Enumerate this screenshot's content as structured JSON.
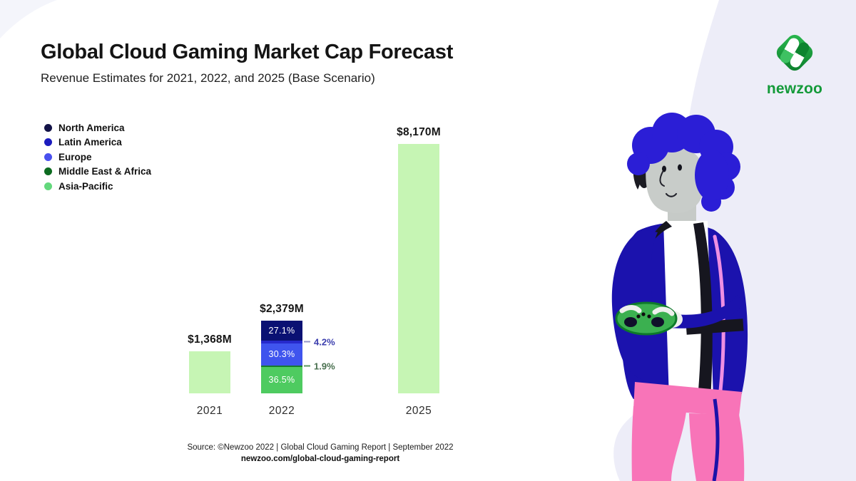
{
  "page": {
    "background": "#ffffff",
    "blob_color": "#ededf8"
  },
  "header": {
    "title": "Global Cloud Gaming Market Cap Forecast",
    "subtitle": "Revenue Estimates for 2021, 2022, and 2025 (Base Scenario)"
  },
  "logo": {
    "text": "newzoo",
    "text_color": "#149a39",
    "diamond_green_light": "#2cbb51",
    "diamond_green_dark": "#0b7c2b"
  },
  "legend": {
    "items": [
      {
        "label": "North America",
        "color": "#131347"
      },
      {
        "label": "Latin America",
        "color": "#1c1cbe"
      },
      {
        "label": "Europe",
        "color": "#4950ee"
      },
      {
        "label": "Middle East & Africa",
        "color": "#0d6b20"
      },
      {
        "label": "Asia-Pacific",
        "color": "#63d87c"
      }
    ]
  },
  "chart_data": {
    "type": "bar",
    "title": "Global Cloud Gaming Market Cap Forecast",
    "subtitle": "Revenue Estimates for 2021, 2022, and 2025 (Base Scenario)",
    "unit": "USD millions",
    "categories": [
      "2021",
      "2022",
      "2025"
    ],
    "totals": [
      1368,
      2379,
      8170
    ],
    "total_labels": [
      "$1,368M",
      "$2,379M",
      "$8,170M"
    ],
    "bar_colors": {
      "plain": "#c6f5b4"
    },
    "breakdown_2022": {
      "segments": [
        {
          "region": "North America",
          "pct": 27.1,
          "label": "27.1%",
          "color": "#0a1173",
          "label_position": "inside"
        },
        {
          "region": "Latin America",
          "pct": 4.2,
          "label": "4.2%",
          "color": "#2629cc",
          "label_position": "callout",
          "callout_text_color": "#3c3fae",
          "callout_tick_color": "#9396c9"
        },
        {
          "region": "Europe",
          "pct": 30.3,
          "label": "30.3%",
          "color": "#3f54ee",
          "label_position": "inside"
        },
        {
          "region": "Middle East & Africa",
          "pct": 1.9,
          "label": "1.9%",
          "color": "#167a2e",
          "label_position": "callout",
          "callout_text_color": "#49704f",
          "callout_tick_color": "#59985f"
        },
        {
          "region": "Asia-Pacific",
          "pct": 36.5,
          "label": "36.5%",
          "color": "#4ecb60",
          "label_position": "inside"
        }
      ]
    },
    "ylim": [
      0,
      8500
    ],
    "grid": false,
    "legend_position": "top-left"
  },
  "footer": {
    "source_line": "Source: ©Newzoo 2022 | Global Cloud Gaming Report | September 2022",
    "link_line": "newzoo.com/global-cloud-gaming-report"
  }
}
